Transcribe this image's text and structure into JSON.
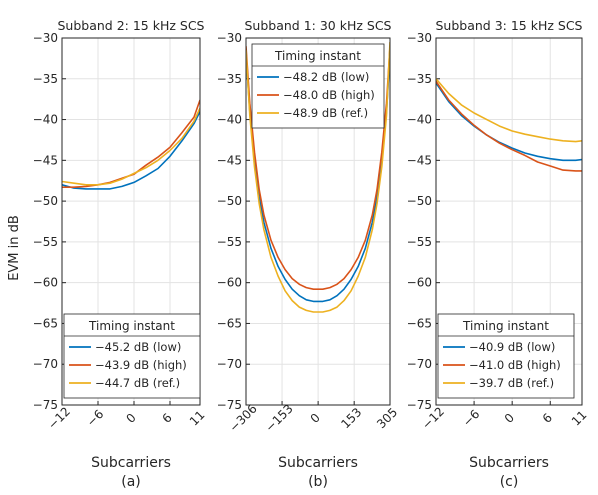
{
  "figure": {
    "ylabel": "EVM in dB",
    "xlabel": "Subcarriers",
    "legend_title": "Timing instant"
  },
  "chart_data": [
    {
      "type": "line",
      "title": "Subband 2: 15 kHz SCS",
      "caption": "(a)",
      "xlabel": "Subcarriers",
      "ylabel": "EVM in dB",
      "xlim": [
        -12,
        11
      ],
      "ylim": [
        -75,
        -30
      ],
      "xticks": [
        -12,
        -6,
        0,
        6,
        11
      ],
      "yticks": [
        -30,
        -35,
        -40,
        -45,
        -50,
        -55,
        -60,
        -65,
        -70,
        -75
      ],
      "grid": true,
      "legend_position": "bottom",
      "series": [
        {
          "name": "−45.2 dB (low)",
          "color": "#0072BD",
          "x": [
            -12,
            -10,
            -8,
            -6,
            -4,
            -2,
            0,
            2,
            4,
            6,
            8,
            10,
            11
          ],
          "y": [
            -48.0,
            -48.4,
            -48.5,
            -48.5,
            -48.5,
            -48.2,
            -47.7,
            -46.9,
            -46.0,
            -44.5,
            -42.6,
            -40.5,
            -39.0
          ]
        },
        {
          "name": "−43.9 dB (high)",
          "color": "#D95319",
          "x": [
            -12,
            -10,
            -8,
            -6,
            -4,
            -2,
            0,
            2,
            4,
            6,
            8,
            10,
            11
          ],
          "y": [
            -48.3,
            -48.3,
            -48.2,
            -48.0,
            -47.7,
            -47.2,
            -46.7,
            -45.6,
            -44.6,
            -43.4,
            -41.6,
            -39.7,
            -37.6
          ]
        },
        {
          "name": "−44.7 dB (ref.)",
          "color": "#EDB120",
          "x": [
            -12,
            -10,
            -8,
            -6,
            -4,
            -2,
            0,
            2,
            4,
            6,
            8,
            10,
            11
          ],
          "y": [
            -47.6,
            -47.8,
            -48.0,
            -48.0,
            -47.8,
            -47.3,
            -46.6,
            -45.9,
            -45.0,
            -43.8,
            -42.3,
            -40.2,
            -38.6
          ]
        }
      ],
      "annotations": []
    },
    {
      "type": "line",
      "title": "Subband 1: 30 kHz SCS",
      "caption": "(b)",
      "xlabel": "Subcarriers",
      "ylabel": "",
      "xlim": [
        -306,
        305
      ],
      "ylim": [
        -75,
        -30
      ],
      "xticks": [
        -306,
        -153,
        0,
        153,
        305
      ],
      "yticks": [
        -30,
        -35,
        -40,
        -45,
        -50,
        -55,
        -60,
        -65,
        -70,
        -75
      ],
      "grid": true,
      "legend_position": "top",
      "series": [
        {
          "name": "−48.2 dB (low)",
          "color": "#0072BD",
          "x": [
            -306,
            -290,
            -270,
            -250,
            -230,
            -200,
            -170,
            -140,
            -110,
            -80,
            -50,
            -20,
            0,
            20,
            50,
            80,
            110,
            140,
            170,
            200,
            230,
            250,
            270,
            290,
            305
          ],
          "y": [
            -32.0,
            -39.0,
            -45.0,
            -49.5,
            -52.6,
            -55.8,
            -58.0,
            -59.6,
            -60.8,
            -61.6,
            -62.1,
            -62.3,
            -62.3,
            -62.3,
            -62.1,
            -61.6,
            -60.8,
            -59.6,
            -58.0,
            -55.8,
            -52.6,
            -49.5,
            -45.0,
            -39.0,
            -32.0
          ]
        },
        {
          "name": "−48.0 dB (high)",
          "color": "#D95319",
          "x": [
            -306,
            -290,
            -270,
            -250,
            -230,
            -200,
            -170,
            -140,
            -110,
            -80,
            -50,
            -20,
            0,
            20,
            50,
            80,
            110,
            140,
            170,
            200,
            230,
            250,
            270,
            290,
            305
          ],
          "y": [
            -31.0,
            -38.0,
            -44.0,
            -48.6,
            -51.7,
            -54.8,
            -56.9,
            -58.4,
            -59.5,
            -60.2,
            -60.6,
            -60.8,
            -60.8,
            -60.8,
            -60.6,
            -60.2,
            -59.5,
            -58.4,
            -56.9,
            -54.8,
            -51.7,
            -48.6,
            -44.0,
            -38.0,
            -31.0
          ]
        },
        {
          "name": "−48.9 dB (ref.)",
          "color": "#EDB120",
          "x": [
            -306,
            -290,
            -270,
            -250,
            -230,
            -200,
            -170,
            -140,
            -110,
            -80,
            -50,
            -20,
            0,
            20,
            50,
            80,
            110,
            140,
            170,
            200,
            230,
            250,
            270,
            290,
            305
          ],
          "y": [
            -31.5,
            -39.5,
            -45.8,
            -50.3,
            -53.5,
            -56.9,
            -59.2,
            -61.0,
            -62.2,
            -63.0,
            -63.4,
            -63.6,
            -63.6,
            -63.6,
            -63.4,
            -63.0,
            -62.2,
            -61.0,
            -59.2,
            -56.9,
            -53.5,
            -50.3,
            -45.8,
            -39.5,
            -30.5
          ]
        }
      ],
      "annotations": []
    },
    {
      "type": "line",
      "title": "Subband 3: 15 kHz SCS",
      "caption": "(c)",
      "xlabel": "Subcarriers",
      "ylabel": "",
      "xlim": [
        -12,
        11
      ],
      "ylim": [
        -75,
        -30
      ],
      "xticks": [
        -12,
        -6,
        0,
        6,
        11
      ],
      "yticks": [
        -30,
        -35,
        -40,
        -45,
        -50,
        -55,
        -60,
        -65,
        -70,
        -75
      ],
      "grid": true,
      "legend_position": "bottom",
      "series": [
        {
          "name": "−40.9 dB (low)",
          "color": "#0072BD",
          "x": [
            -12,
            -10,
            -8,
            -6,
            -4,
            -2,
            0,
            2,
            4,
            6,
            8,
            10,
            11
          ],
          "y": [
            -35.5,
            -37.8,
            -39.5,
            -40.8,
            -41.9,
            -42.8,
            -43.5,
            -44.1,
            -44.5,
            -44.8,
            -45.0,
            -45.0,
            -44.9
          ]
        },
        {
          "name": "−41.0 dB (high)",
          "color": "#D95319",
          "x": [
            -12,
            -10,
            -8,
            -6,
            -4,
            -2,
            0,
            2,
            4,
            6,
            8,
            10,
            11
          ],
          "y": [
            -35.3,
            -37.6,
            -39.3,
            -40.7,
            -41.9,
            -42.9,
            -43.7,
            -44.4,
            -45.2,
            -45.7,
            -46.2,
            -46.3,
            -46.3
          ]
        },
        {
          "name": "−39.7 dB (ref.)",
          "color": "#EDB120",
          "x": [
            -12,
            -10,
            -8,
            -6,
            -4,
            -2,
            0,
            2,
            4,
            6,
            8,
            10,
            11
          ],
          "y": [
            -35.0,
            -36.8,
            -38.2,
            -39.2,
            -40.0,
            -40.8,
            -41.4,
            -41.8,
            -42.1,
            -42.4,
            -42.6,
            -42.7,
            -42.6
          ]
        }
      ],
      "annotations": []
    }
  ]
}
